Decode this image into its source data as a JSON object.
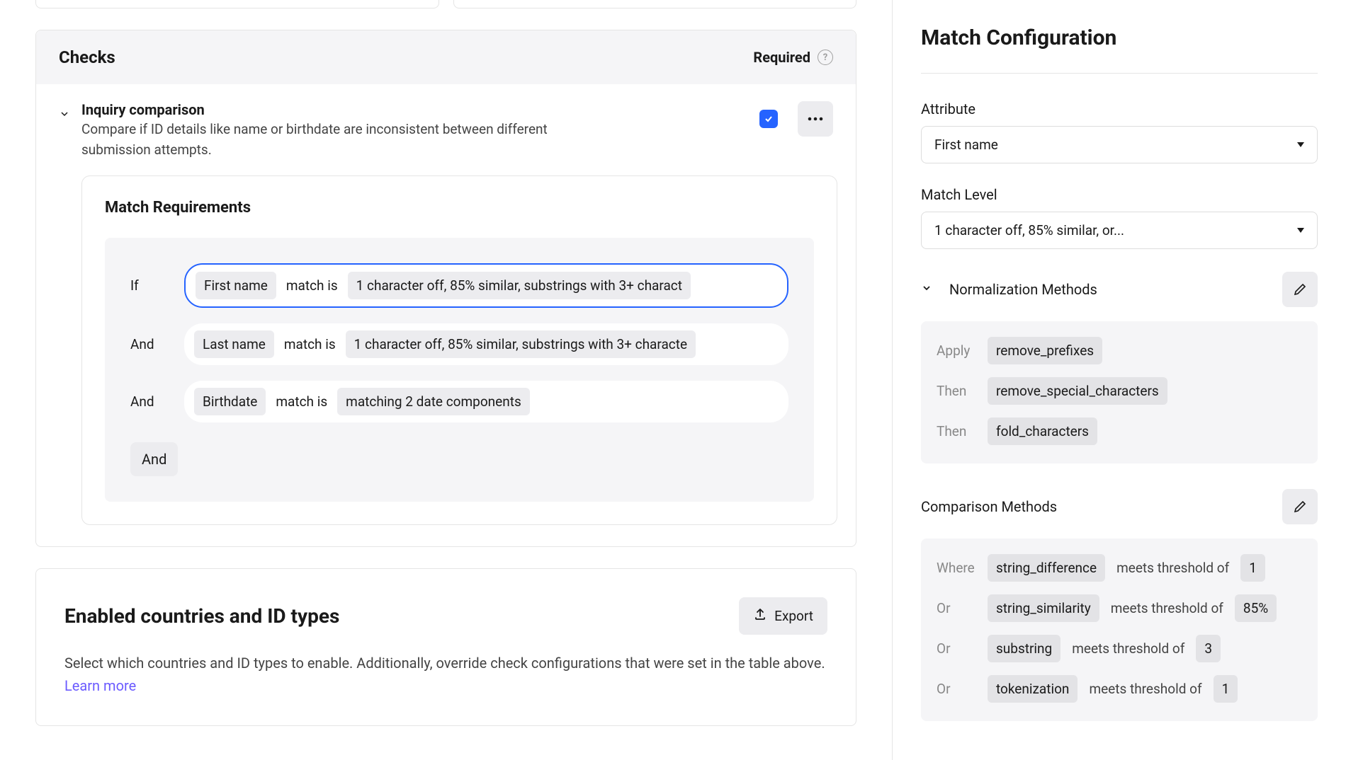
{
  "checks": {
    "title": "Checks",
    "required_label": "Required"
  },
  "inquiry": {
    "title": "Inquiry comparison",
    "description": "Compare if ID details like name or birthdate are inconsistent between different submission attempts."
  },
  "match_requirements": {
    "title": "Match Requirements",
    "rules": [
      {
        "op": "If",
        "attr": "First name",
        "mid": "match is",
        "cond": "1 character off, 85% similar, substrings with 3+ charact",
        "selected": true
      },
      {
        "op": "And",
        "attr": "Last name",
        "mid": "match is",
        "cond": "1 character off, 85% similar, substrings with 3+ characte",
        "selected": false
      },
      {
        "op": "And",
        "attr": "Birthdate",
        "mid": "match is",
        "cond": "matching 2 date components",
        "selected": false
      }
    ],
    "and_label": "And"
  },
  "countries": {
    "title": "Enabled countries and ID types",
    "export_label": "Export",
    "description": "Select which countries and ID types to enable. Additionally, override check configurations that were set in the table above. ",
    "learn_more": "Learn more"
  },
  "config": {
    "title": "Match Configuration",
    "attribute_label": "Attribute",
    "attribute_value": "First name",
    "match_level_label": "Match Level",
    "match_level_value": "1 character off, 85% similar, or...",
    "normalization_title": "Normalization Methods",
    "normalization": [
      {
        "label": "Apply",
        "method": "remove_prefixes"
      },
      {
        "label": "Then",
        "method": "remove_special_characters"
      },
      {
        "label": "Then",
        "method": "fold_characters"
      }
    ],
    "comparison_title": "Comparison Methods",
    "comparison": [
      {
        "label": "Where",
        "method": "string_difference",
        "mid": "meets threshold of",
        "value": "1"
      },
      {
        "label": "Or",
        "method": "string_similarity",
        "mid": "meets threshold of",
        "value": "85%"
      },
      {
        "label": "Or",
        "method": "substring",
        "mid": "meets threshold of",
        "value": "3"
      },
      {
        "label": "Or",
        "method": "tokenization",
        "mid": "meets threshold of",
        "value": "1"
      }
    ]
  }
}
